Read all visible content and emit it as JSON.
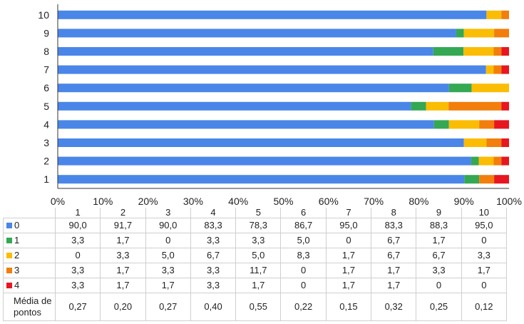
{
  "chart_data": {
    "type": "bar",
    "orientation": "horizontal",
    "stacked": true,
    "categories": [
      "1",
      "2",
      "3",
      "4",
      "5",
      "6",
      "7",
      "8",
      "9",
      "10"
    ],
    "x_ticks": [
      "0%",
      "10%",
      "20%",
      "30%",
      "40%",
      "50%",
      "60%",
      "70%",
      "80%",
      "90%",
      "100%"
    ],
    "xlim": [
      0,
      100
    ],
    "grid": false,
    "legend": "table-left",
    "series": [
      {
        "name": "0",
        "color": "#4a86e8",
        "values": [
          "90,0",
          "91,7",
          "90,0",
          "83,3",
          "78,3",
          "86,7",
          "95,0",
          "83,3",
          "88,3",
          "95,0"
        ]
      },
      {
        "name": "1",
        "color": "#34a853",
        "values": [
          "3,3",
          "1,7",
          "0",
          "3,3",
          "3,3",
          "5,0",
          "0",
          "6,7",
          "1,7",
          "0"
        ]
      },
      {
        "name": "2",
        "color": "#fbbc04",
        "values": [
          "0",
          "3,3",
          "5,0",
          "6,7",
          "5,0",
          "8,3",
          "1,7",
          "6,7",
          "6,7",
          "3,3"
        ]
      },
      {
        "name": "3",
        "color": "#f27e0c",
        "values": [
          "3,3",
          "1,7",
          "3,3",
          "3,3",
          "11,7",
          "0",
          "1,7",
          "1,7",
          "3,3",
          "1,7"
        ]
      },
      {
        "name": "4",
        "color": "#e8161f",
        "values": [
          "3,3",
          "1,7",
          "1,7",
          "3,3",
          "1,7",
          "0",
          "1,7",
          "1,7",
          "0",
          "0"
        ]
      }
    ],
    "summary_row": {
      "label": "Média de pontos",
      "values": [
        "0,27",
        "0,20",
        "0,27",
        "0,40",
        "0,55",
        "0,22",
        "0,15",
        "0,32",
        "0,25",
        "0,12"
      ]
    }
  }
}
